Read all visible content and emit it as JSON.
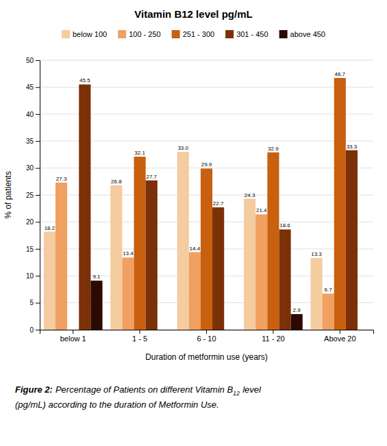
{
  "chart_data": {
    "type": "bar",
    "title": "Vitamin B12 level pg/mL",
    "xlabel": "Duration of metformin use (years)",
    "ylabel": "% of patients",
    "categories": [
      "below 1",
      "1 - 5",
      "6 - 10",
      "11 - 20",
      "Above 20"
    ],
    "series": [
      {
        "name": "below 100",
        "color": "#F5CBA0",
        "values": [
          18.2,
          26.8,
          33.0,
          24.3,
          13.3
        ],
        "value_labels": [
          "18.2",
          "26.8",
          "33.0",
          "24.3",
          "13.3"
        ]
      },
      {
        "name": "100 - 250",
        "color": "#F0A060",
        "values": [
          27.3,
          13.4,
          14.4,
          21.4,
          6.7
        ],
        "value_labels": [
          "27.3",
          "13.4",
          "14.4",
          "21.4",
          "6.7"
        ]
      },
      {
        "name": "251 - 300",
        "color": "#C86010",
        "values": [
          0.0,
          32.1,
          29.9,
          32.9,
          46.7
        ],
        "value_labels": [
          null,
          "32.1",
          "29.9",
          "32.9",
          "46.7"
        ]
      },
      {
        "name": "301 - 450",
        "color": "#7B3008",
        "values": [
          45.5,
          27.7,
          22.7,
          18.6,
          33.3
        ],
        "value_labels": [
          "45.5",
          "27.7",
          "22.7",
          "18.6",
          "33.3"
        ]
      },
      {
        "name": "above 450",
        "color": "#2C0A02",
        "values": [
          9.1,
          0.0,
          0.0,
          2.9,
          0.0
        ],
        "value_labels": [
          "9.1",
          null,
          null,
          "2.9",
          null
        ]
      }
    ],
    "ylim": [
      0,
      50
    ],
    "yticks": [
      0,
      5,
      10,
      15,
      20,
      25,
      30,
      35,
      40,
      45,
      50
    ],
    "grid": true,
    "legend": "top",
    "data_labels": true,
    "annotations": [
      "Figure 2:",
      "Percentage of Patients on different Vitamin B",
      "12",
      "level",
      "(pg/mL) according to the duration of Metformin Use."
    ]
  }
}
